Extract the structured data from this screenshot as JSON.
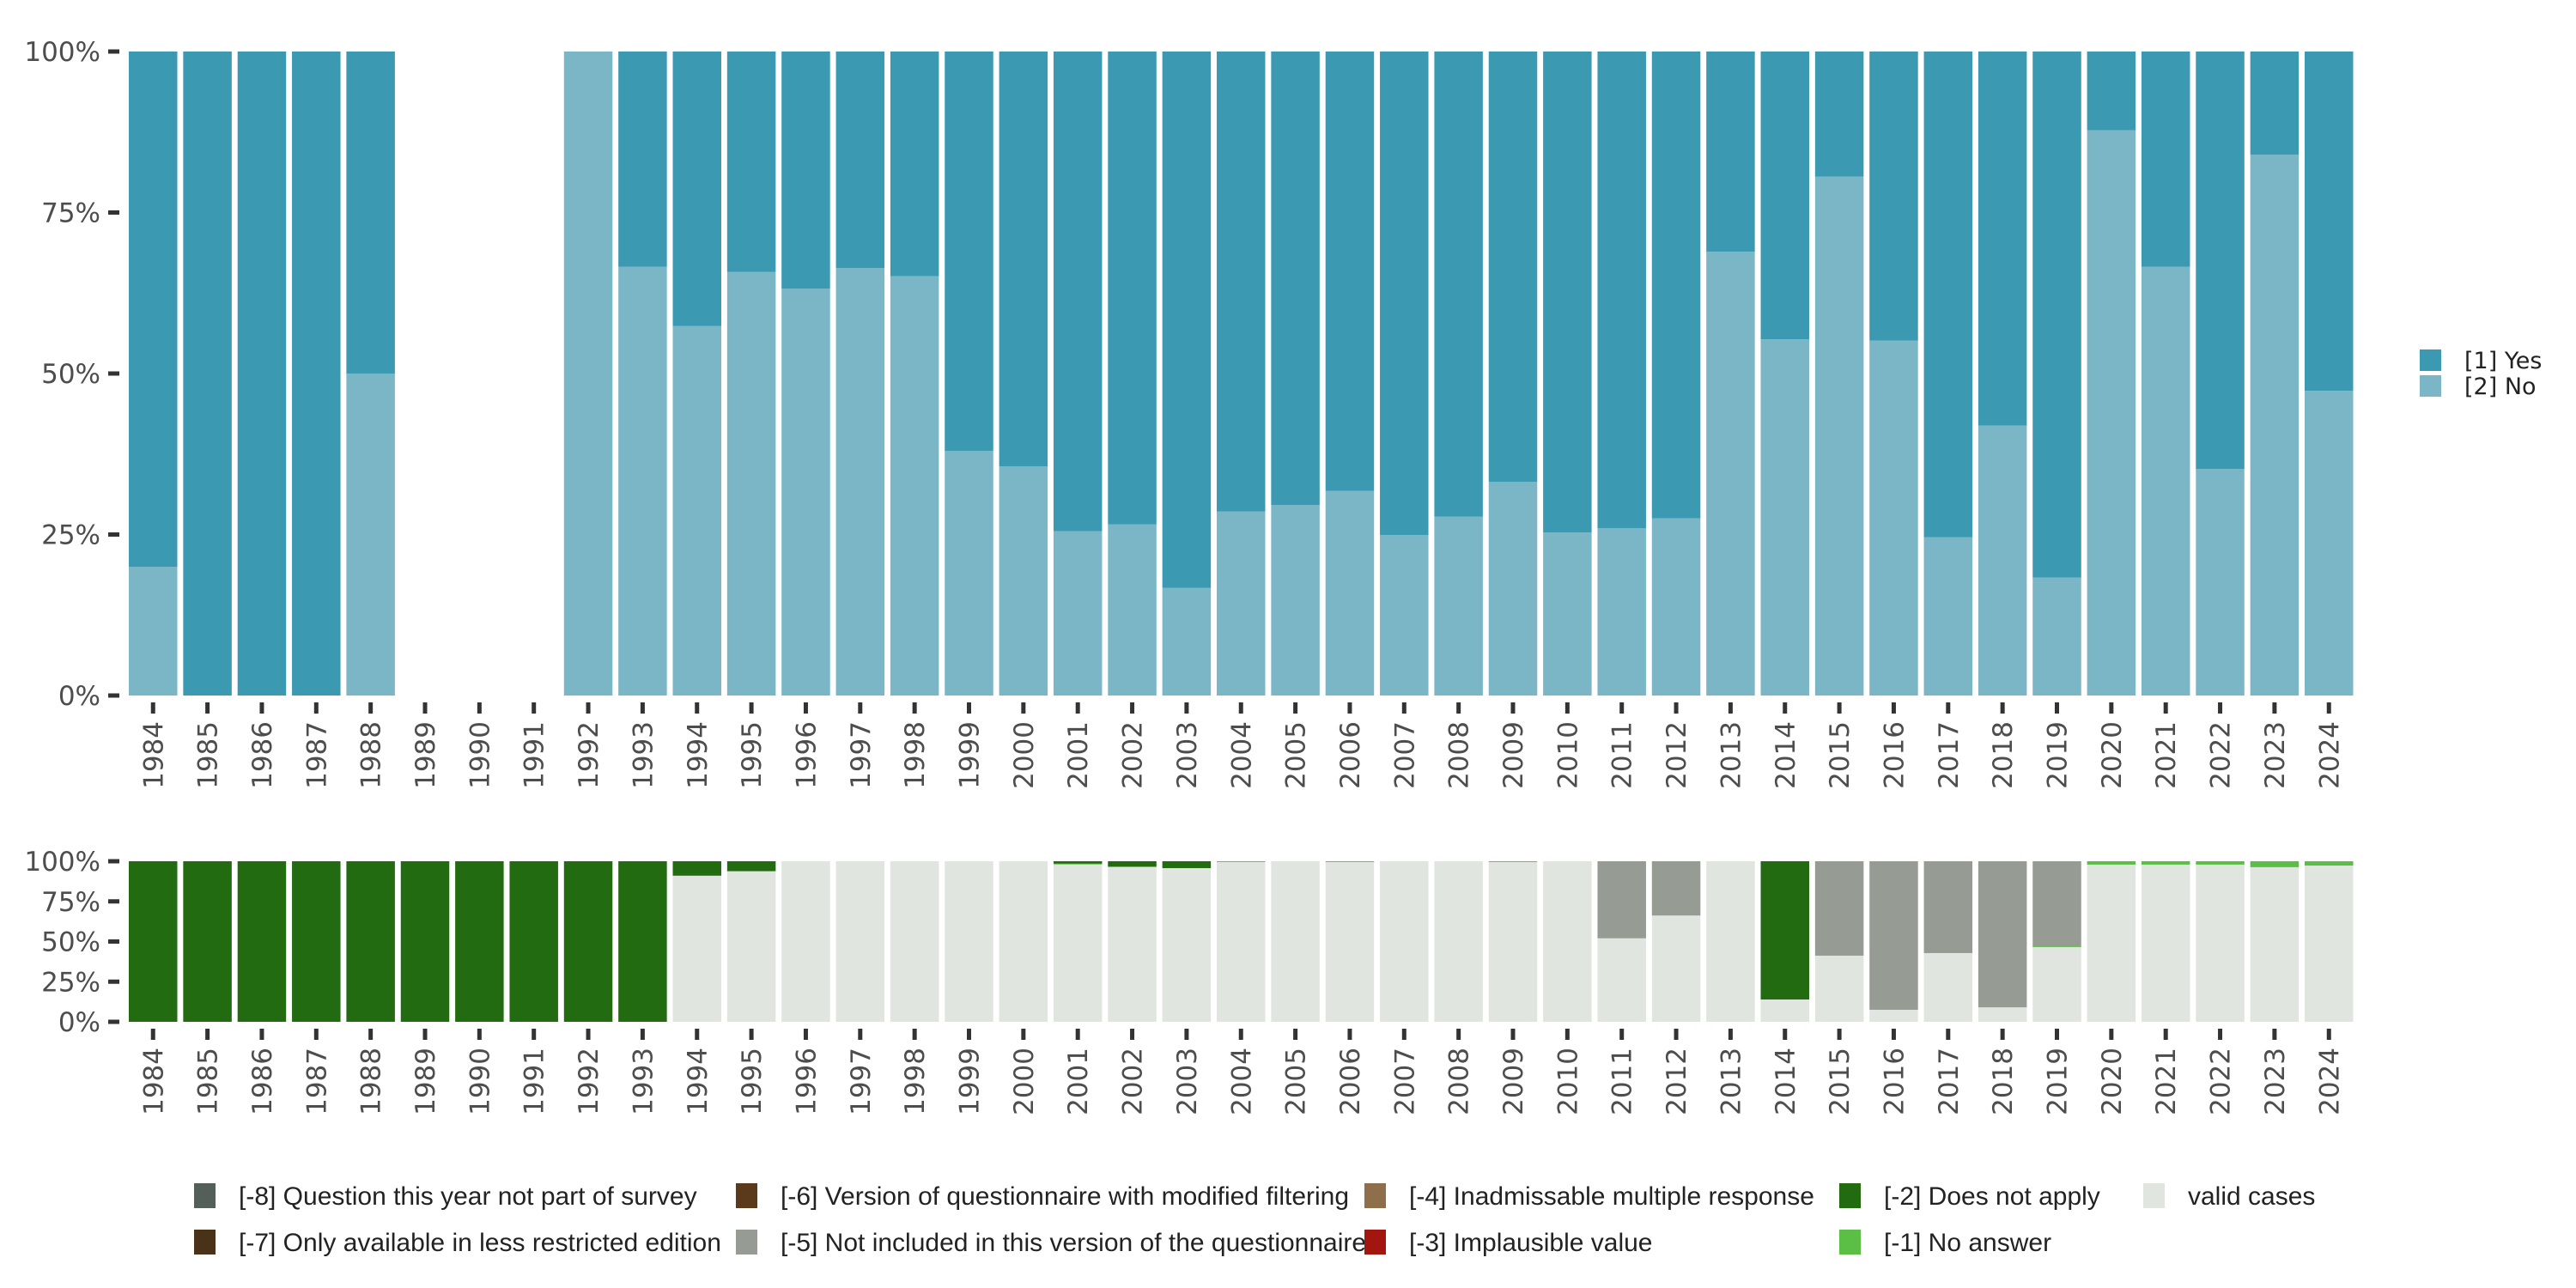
{
  "chart_data": [
    {
      "type": "bar",
      "stacked": true,
      "normalized": true,
      "title": "",
      "xlabel": "",
      "ylabel": "",
      "ylim": [
        0,
        100
      ],
      "yticks": [
        "0%",
        "25%",
        "50%",
        "75%",
        "100%"
      ],
      "categories": [
        "1984",
        "1985",
        "1986",
        "1987",
        "1988",
        "1989",
        "1990",
        "1991",
        "1992",
        "1993",
        "1994",
        "1995",
        "1996",
        "1997",
        "1998",
        "1999",
        "2000",
        "2001",
        "2002",
        "2003",
        "2004",
        "2005",
        "2006",
        "2007",
        "2008",
        "2009",
        "2010",
        "2011",
        "2012",
        "2013",
        "2014",
        "2015",
        "2016",
        "2017",
        "2018",
        "2019",
        "2020",
        "2021",
        "2022",
        "2023",
        "2024"
      ],
      "legend_position": "right",
      "series": [
        {
          "name": "[2] No",
          "color": "#7AB6C6",
          "values": [
            20,
            0,
            0,
            0,
            50,
            null,
            null,
            null,
            100,
            66.6,
            57.4,
            65.8,
            63.2,
            66.4,
            65.1,
            38.0,
            35.6,
            25.5,
            26.6,
            16.7,
            28.6,
            29.6,
            31.8,
            24.9,
            27.8,
            33.2,
            25.3,
            26.0,
            27.5,
            68.9,
            55.3,
            80.6,
            55.1,
            24.6,
            41.9,
            18.3,
            87.8,
            66.6,
            35.2,
            84.0,
            47.3
          ]
        },
        {
          "name": "[1] Yes",
          "color": "#3C99B2",
          "values": [
            80,
            100,
            100,
            100,
            50,
            null,
            null,
            null,
            0,
            33.4,
            42.6,
            34.2,
            36.8,
            33.6,
            34.9,
            62.0,
            64.4,
            74.5,
            73.4,
            83.3,
            71.4,
            70.4,
            68.2,
            75.1,
            72.2,
            66.8,
            74.7,
            74.0,
            72.5,
            31.1,
            44.7,
            19.4,
            44.9,
            75.4,
            58.1,
            81.7,
            12.2,
            33.4,
            64.8,
            16.0,
            52.7
          ]
        }
      ],
      "legend": [
        {
          "label": "[1] Yes",
          "color": "#3C99B2"
        },
        {
          "label": "[2] No",
          "color": "#7AB6C6"
        }
      ]
    },
    {
      "type": "bar",
      "stacked": true,
      "normalized": true,
      "title": "",
      "xlabel": "",
      "ylabel": "",
      "ylim": [
        0,
        100
      ],
      "yticks": [
        "0%",
        "25%",
        "50%",
        "75%",
        "100%"
      ],
      "categories": [
        "1984",
        "1985",
        "1986",
        "1987",
        "1988",
        "1989",
        "1990",
        "1991",
        "1992",
        "1993",
        "1994",
        "1995",
        "1996",
        "1997",
        "1998",
        "1999",
        "2000",
        "2001",
        "2002",
        "2003",
        "2004",
        "2005",
        "2006",
        "2007",
        "2008",
        "2009",
        "2010",
        "2011",
        "2012",
        "2013",
        "2014",
        "2015",
        "2016",
        "2017",
        "2018",
        "2019",
        "2020",
        "2021",
        "2022",
        "2023",
        "2024"
      ],
      "legend_position": "bottom",
      "series": [
        {
          "name": "valid cases",
          "color": "#E0E5E0",
          "values": [
            0,
            0,
            0,
            0,
            0,
            0,
            0,
            0,
            0,
            0,
            91.0,
            93.8,
            100,
            100,
            100,
            100,
            100,
            98.0,
            96.3,
            95.7,
            99.5,
            100,
            99.5,
            100,
            100,
            99.5,
            100,
            52.0,
            66.2,
            100,
            13.9,
            41.2,
            7.5,
            42.8,
            9.0,
            46.5,
            97.9,
            97.9,
            97.9,
            96.3,
            97.3
          ]
        },
        {
          "name": "[-1] No answer",
          "color": "#5BBF45",
          "values": [
            0,
            0,
            0,
            0,
            0,
            0,
            0,
            0,
            0,
            0,
            0,
            0,
            0,
            0,
            0,
            0,
            0,
            0.5,
            0.5,
            0,
            0.5,
            0,
            0.5,
            0,
            0,
            0.5,
            0,
            0,
            0,
            0,
            0,
            0,
            0,
            0,
            0,
            0.5,
            2.1,
            2.1,
            2.1,
            3.7,
            2.7
          ]
        },
        {
          "name": "[-2] Does not apply",
          "color": "#236B11",
          "values": [
            100,
            100,
            100,
            100,
            100,
            100,
            100,
            100,
            100,
            100,
            9.0,
            6.2,
            0,
            0,
            0,
            0,
            0,
            1.5,
            3.2,
            4.3,
            0,
            0,
            0,
            0,
            0,
            0,
            0,
            0,
            0,
            0,
            86.1,
            0,
            0,
            0,
            0,
            0,
            0,
            0,
            0,
            0,
            0
          ]
        },
        {
          "name": "[-3] Implausible value",
          "color": "#A3150F",
          "values": [
            0,
            0,
            0,
            0,
            0,
            0,
            0,
            0,
            0,
            0,
            0,
            0,
            0,
            0,
            0,
            0,
            0,
            0,
            0,
            0,
            0,
            0,
            0,
            0,
            0,
            0,
            0,
            0,
            0,
            0,
            0,
            0,
            0,
            0,
            0,
            0,
            0,
            0,
            0,
            0,
            0
          ]
        },
        {
          "name": "[-4] Inadmissable multiple response",
          "color": "#8F6E4C",
          "values": [
            0,
            0,
            0,
            0,
            0,
            0,
            0,
            0,
            0,
            0,
            0,
            0,
            0,
            0,
            0,
            0,
            0,
            0,
            0,
            0,
            0,
            0,
            0,
            0,
            0,
            0,
            0,
            0,
            0,
            0,
            0,
            0,
            0,
            0,
            0,
            0,
            0,
            0,
            0,
            0,
            0
          ]
        },
        {
          "name": "[-5] Not included in this version of the questionnaire",
          "color": "#969B93",
          "values": [
            0,
            0,
            0,
            0,
            0,
            0,
            0,
            0,
            0,
            0,
            0,
            0,
            0,
            0,
            0,
            0,
            0,
            0,
            0,
            0,
            0,
            0,
            0,
            0,
            0,
            0,
            0,
            48.0,
            33.8,
            0,
            0,
            58.8,
            92.5,
            57.2,
            91.0,
            53.0,
            0,
            0,
            0,
            0,
            0
          ]
        },
        {
          "name": "[-6] Version of questionnaire with modified filtering",
          "color": "#5A3A1A",
          "values": [
            0,
            0,
            0,
            0,
            0,
            0,
            0,
            0,
            0,
            0,
            0,
            0,
            0,
            0,
            0,
            0,
            0,
            0,
            0,
            0,
            0,
            0,
            0,
            0,
            0,
            0,
            0,
            0,
            0,
            0,
            0,
            0,
            0,
            0,
            0,
            0,
            0,
            0,
            0,
            0,
            0
          ]
        },
        {
          "name": "[-7] Only available in less restricted edition",
          "color": "#4A3218",
          "values": [
            0,
            0,
            0,
            0,
            0,
            0,
            0,
            0,
            0,
            0,
            0,
            0,
            0,
            0,
            0,
            0,
            0,
            0,
            0,
            0,
            0,
            0,
            0,
            0,
            0,
            0,
            0,
            0,
            0,
            0,
            0,
            0,
            0,
            0,
            0,
            0,
            0,
            0,
            0,
            0,
            0
          ]
        },
        {
          "name": "[-8] Question this year not part of survey",
          "color": "#555F5A",
          "values": [
            0,
            0,
            0,
            0,
            0,
            0,
            0,
            0,
            0,
            0,
            0,
            0,
            0,
            0,
            0,
            0,
            0,
            0,
            0,
            0,
            0,
            0,
            0,
            0,
            0,
            0,
            0,
            0,
            0,
            0,
            0,
            0,
            0,
            0,
            0,
            0,
            0,
            0,
            0,
            0,
            0
          ]
        }
      ],
      "legend": [
        {
          "label": "[-8] Question this year not part of survey",
          "color": "#555F5A"
        },
        {
          "label": "[-7] Only available in less restricted edition",
          "color": "#4A3218"
        },
        {
          "label": "[-6] Version of questionnaire with modified filtering",
          "color": "#5A3A1A"
        },
        {
          "label": "[-5] Not included in this version of the questionnaire",
          "color": "#969B93"
        },
        {
          "label": "[-4] Inadmissable multiple response",
          "color": "#8F6E4C"
        },
        {
          "label": "[-3] Implausible value",
          "color": "#A3150F"
        },
        {
          "label": "[-2] Does not apply",
          "color": "#236B11"
        },
        {
          "label": "[-1] No answer",
          "color": "#5BBF45"
        },
        {
          "label": "valid cases",
          "color": "#E0E5E0"
        }
      ]
    }
  ]
}
